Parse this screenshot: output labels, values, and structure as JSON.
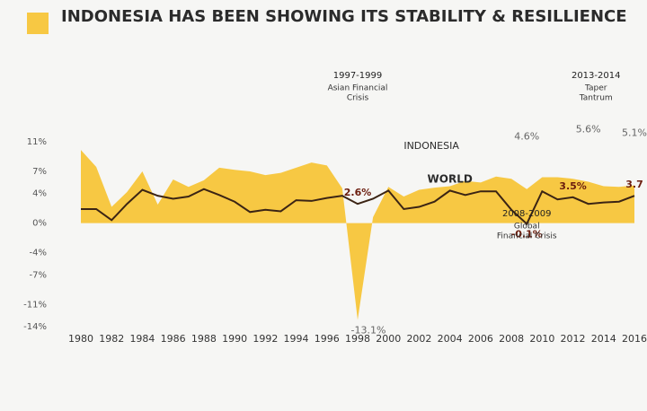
{
  "chart_data": {
    "type": "area-line",
    "title": "INDONESIA HAS BEEN SHOWING ITS STABILITY & RESILLIENCE",
    "x": [
      1980,
      1981,
      1982,
      1983,
      1984,
      1985,
      1986,
      1987,
      1988,
      1989,
      1990,
      1991,
      1992,
      1993,
      1994,
      1995,
      1996,
      1997,
      1998,
      1999,
      2000,
      2001,
      2002,
      2003,
      2004,
      2005,
      2006,
      2007,
      2008,
      2009,
      2010,
      2011,
      2012,
      2013,
      2014,
      2015,
      2016
    ],
    "series": [
      {
        "name": "INDONESIA",
        "color": "#f7c843",
        "values": [
          9.9,
          7.6,
          2.2,
          4.2,
          7.0,
          2.5,
          5.9,
          4.9,
          5.8,
          7.5,
          7.2,
          7.0,
          6.5,
          6.8,
          7.5,
          8.2,
          7.8,
          4.7,
          -13.1,
          0.8,
          4.9,
          3.6,
          4.5,
          4.8,
          5.0,
          5.7,
          5.5,
          6.3,
          6.0,
          4.6,
          6.2,
          6.2,
          6.0,
          5.6,
          5.0,
          4.9,
          5.1
        ],
        "value_labels": [
          null,
          null,
          null,
          null,
          null,
          null,
          null,
          null,
          null,
          null,
          null,
          null,
          null,
          null,
          null,
          null,
          null,
          null,
          "-13.1%",
          null,
          null,
          null,
          null,
          null,
          null,
          null,
          null,
          null,
          null,
          "4.6%",
          null,
          null,
          null,
          "5.6%",
          null,
          null,
          "5.1%"
        ]
      },
      {
        "name": "WORLD",
        "color": "#3b2414",
        "values": [
          1.9,
          1.9,
          0.4,
          2.6,
          4.5,
          3.7,
          3.3,
          3.6,
          4.6,
          3.8,
          2.9,
          1.5,
          1.8,
          1.6,
          3.1,
          3.0,
          3.4,
          3.7,
          2.6,
          3.3,
          4.4,
          1.9,
          2.2,
          2.9,
          4.4,
          3.8,
          4.3,
          4.3,
          1.8,
          -0.1,
          4.3,
          3.2,
          3.5,
          2.6,
          2.8,
          2.9,
          3.7
        ],
        "value_labels": [
          null,
          null,
          null,
          null,
          null,
          null,
          null,
          null,
          null,
          null,
          null,
          null,
          null,
          null,
          null,
          null,
          null,
          null,
          "2.6%",
          null,
          null,
          null,
          null,
          null,
          null,
          null,
          null,
          null,
          null,
          "-0.1%",
          null,
          null,
          "3.5%",
          null,
          null,
          null,
          "3.7"
        ]
      }
    ],
    "annotations": [
      {
        "x": 1998,
        "title": "1997-1999",
        "text": [
          "Asian Financial",
          "Crisis"
        ]
      },
      {
        "x": 2009,
        "title": "2008-2009",
        "text": [
          "Global",
          "Financial Crisis"
        ]
      },
      {
        "x": 2013.5,
        "title": "2013-2014",
        "text": [
          "Taper",
          "Tantrum"
        ]
      }
    ],
    "xlim": [
      1980,
      2016
    ],
    "xticks": [
      1980,
      1982,
      1984,
      1986,
      1988,
      1990,
      1992,
      1994,
      1996,
      1998,
      2000,
      2002,
      2004,
      2006,
      2008,
      2010,
      2012,
      2014,
      2016
    ],
    "ylim": [
      -14,
      11
    ],
    "yticks": [
      {
        "value": 11,
        "label": "11%"
      },
      {
        "value": 7,
        "label": "7%"
      },
      {
        "value": 4,
        "label": "4%"
      },
      {
        "value": 0,
        "label": "0%"
      },
      {
        "value": -4,
        "label": "-4%"
      },
      {
        "value": -7,
        "label": "-7%"
      },
      {
        "value": -11,
        "label": "-11%"
      },
      {
        "value": -14,
        "label": "-14%"
      }
    ]
  }
}
